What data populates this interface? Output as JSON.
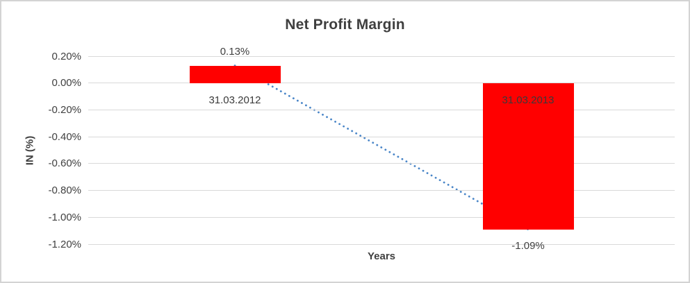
{
  "chart_data": {
    "type": "bar",
    "title": "Net Profit Margin",
    "xlabel": "Years",
    "ylabel": "IN (%)",
    "categories": [
      "31.03.2012",
      "31.03.2013"
    ],
    "values": [
      0.13,
      -1.09
    ],
    "value_labels": [
      "0.13%",
      "-1.09%"
    ],
    "yticks": [
      "0.20%",
      "0.00%",
      "-0.20%",
      "-0.40%",
      "-0.60%",
      "-0.80%",
      "-1.00%",
      "-1.20%"
    ],
    "ytick_values": [
      0.2,
      0.0,
      -0.2,
      -0.4,
      -0.6,
      -0.8,
      -1.0,
      -1.2
    ],
    "ylim": [
      -1.2,
      0.2
    ],
    "grid": true,
    "legend": false,
    "bar_color": "#ff0000",
    "trendline": {
      "style": "dotted",
      "color": "#4a86c8",
      "from_value": 0.13,
      "to_value": -1.09
    }
  }
}
